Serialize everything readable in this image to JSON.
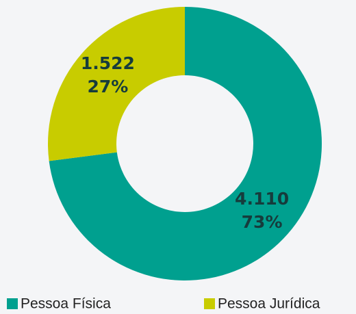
{
  "chart_data": {
    "type": "donut",
    "categories": [
      "Pessoa Física",
      "Pessoa Jurídica"
    ],
    "values": [
      4110,
      1522
    ],
    "value_labels": [
      "4.110",
      "1.522"
    ],
    "percent_labels": [
      "73%",
      "27%"
    ],
    "colors": [
      "#00a08f",
      "#c8cc00"
    ],
    "legend": "bottom"
  }
}
